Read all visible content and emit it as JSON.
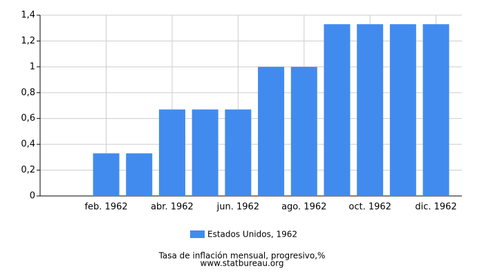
{
  "chart_data": {
    "type": "bar",
    "categories": [
      null,
      "feb. 1962",
      null,
      "abr. 1962",
      null,
      "jun. 1962",
      null,
      "ago. 1962",
      null,
      "oct. 1962",
      null,
      "dic. 1962"
    ],
    "series": [
      {
        "name": "Estados Unidos, 1962",
        "color": "#428bee",
        "values": [
          0,
          0.33,
          0.33,
          0.67,
          0.67,
          0.67,
          1.0,
          1.0,
          1.33,
          1.33,
          1.33,
          1.33
        ]
      }
    ],
    "ylim": [
      0,
      1.4
    ],
    "yticks": [
      0,
      {
        "value": 0.2,
        "label": "0,2"
      },
      {
        "value": 0.4,
        "label": "0,4"
      },
      {
        "value": 0.6,
        "label": "0,6"
      },
      {
        "value": 0.8,
        "label": "0,8"
      },
      1,
      {
        "value": 1.2,
        "label": "1,2"
      },
      {
        "value": 1.4,
        "label": "1,4"
      }
    ],
    "grid": true,
    "xlabel": "Tasa de inflación mensual, progresivo,%",
    "source": "www.statbureau.org"
  }
}
